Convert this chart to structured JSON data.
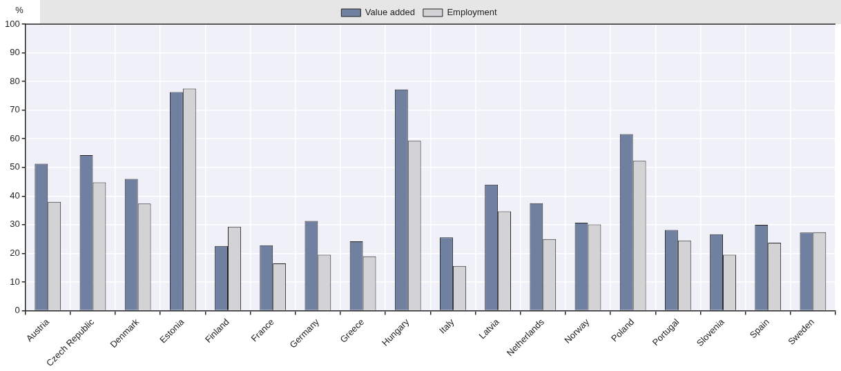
{
  "chart_data": {
    "type": "bar",
    "ylabel": "%",
    "categories": [
      "Austria",
      "Czech Republic",
      "Denmark",
      "Estonia",
      "Finland",
      "France",
      "Germany",
      "Greece",
      "Hungary",
      "Italy",
      "Latvia",
      "Netherlands",
      "Norway",
      "Poland",
      "Portugal",
      "Slovenia",
      "Spain",
      "Sweden"
    ],
    "series": [
      {
        "name": "Value added",
        "color": "#7080a0",
        "values": [
          51.3,
          54.3,
          46.0,
          76.3,
          22.6,
          22.8,
          31.3,
          24.2,
          77.2,
          25.6,
          44.0,
          37.5,
          30.7,
          61.6,
          28.2,
          26.7,
          30.0,
          27.3
        ]
      },
      {
        "name": "Employment",
        "color": "#d3d3d5",
        "values": [
          38.0,
          44.8,
          37.4,
          77.5,
          29.3,
          16.5,
          19.5,
          19.0,
          59.3,
          15.6,
          34.7,
          25.0,
          30.1,
          52.3,
          24.5,
          19.5,
          23.7,
          27.4
        ]
      }
    ],
    "ylim": [
      0,
      100
    ],
    "yticks": [
      0,
      10,
      20,
      30,
      40,
      50,
      60,
      70,
      80,
      90,
      100
    ],
    "grid": true,
    "legend": "top"
  }
}
